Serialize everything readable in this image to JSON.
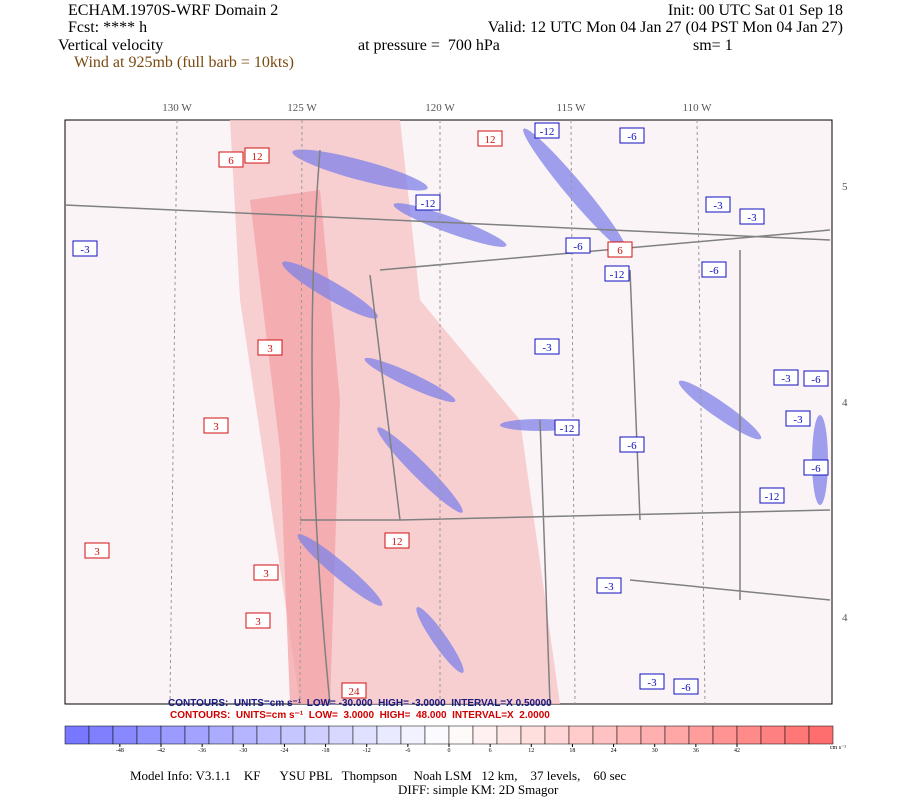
{
  "header": {
    "title": "ECHAM.1970S-WRF Domain 2",
    "fcst": "Fcst: **** h",
    "field": "Vertical velocity",
    "wind": "Wind at 925mb (full barb = 10kts)",
    "init": "Init: 00 UTC Sat 01 Sep 18",
    "valid": "Valid: 12 UTC Mon 04 Jan 27 (04 PST Mon 04 Jan 27)",
    "pressure": "at pressure =  700 hPa",
    "smooth": "sm= 1"
  },
  "map": {
    "lon_labels": [
      "130 W",
      "125 W",
      "120 W",
      "115 W",
      "110 W"
    ],
    "lat_labels": [
      "5",
      "4",
      "4"
    ],
    "contour_labels": [
      "-12",
      "-6",
      "12",
      "12",
      "6",
      "-12",
      "-3",
      "-3",
      "-3",
      "-6",
      "6",
      "-12",
      "-6",
      "3",
      "-3",
      "3",
      "-12",
      "-6",
      "-3",
      "-6",
      "-3",
      "-6",
      "-12",
      "3",
      "12",
      "3",
      "3",
      "-3",
      "-6",
      "24",
      "-3"
    ]
  },
  "contours": {
    "negative": "CONTOURS:  UNITS=cm s⁻¹  LOW= -30.000  HIGH= -3.0000  INTERVAL=X 0.50000",
    "positive": "CONTOURS:  UNITS=cm s⁻¹  LOW=  3.0000  HIGH=  48.000  INTERVAL=X  2.0000"
  },
  "colorbar": {
    "lim": [
      -56,
      56
    ],
    "ticks": [
      -48,
      -42,
      -36,
      -30,
      -24,
      -18,
      -12,
      -6,
      0,
      6,
      12,
      18,
      24,
      30,
      36,
      42
    ],
    "unit": "cm s⁻¹"
  },
  "footer": {
    "model_info": "Model Info: V3.1.1    KF      YSU PBL   Thompson     Noah LSM   12 km,    37 levels,    60 sec",
    "diff": "DIFF: simple KM: 2D Smagor"
  }
}
